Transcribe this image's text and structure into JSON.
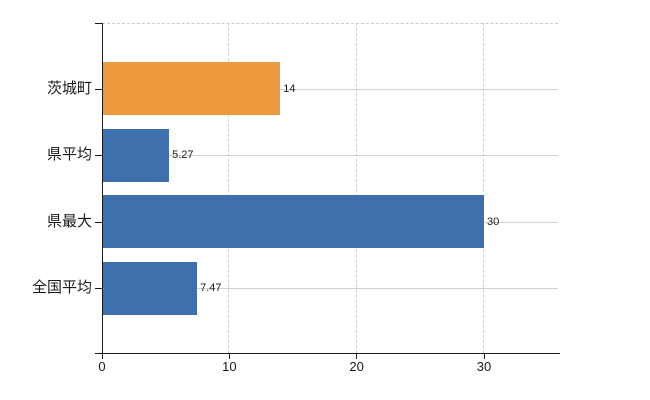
{
  "chart_data": {
    "type": "bar",
    "orientation": "horizontal",
    "title": "",
    "xlabel": "",
    "ylabel": "",
    "categories": [
      "茨城町",
      "県平均",
      "県最大",
      "全国平均"
    ],
    "values": [
      14,
      5.27,
      30,
      7.47
    ],
    "value_labels": [
      "14",
      "5.27",
      "30",
      "7.47"
    ],
    "highlight_index": 0,
    "x_ticks": [
      0,
      10,
      20,
      30
    ],
    "x_tick_labels": [
      "0",
      "10",
      "20",
      "30"
    ],
    "xlim": [
      0,
      35.8
    ],
    "grid": "on",
    "legend": "none",
    "colors": {
      "bar_highlight": "#ED9A3E",
      "bar_default": "#3E70AE",
      "grid_horizontal": "#CDD5CB",
      "grid_vertical": "#C8CEDA",
      "plot_top_border": "#C9CAD6",
      "axis": "#1A1A1A",
      "text": "#1A1A1A",
      "background": "#FFFFFF"
    }
  }
}
